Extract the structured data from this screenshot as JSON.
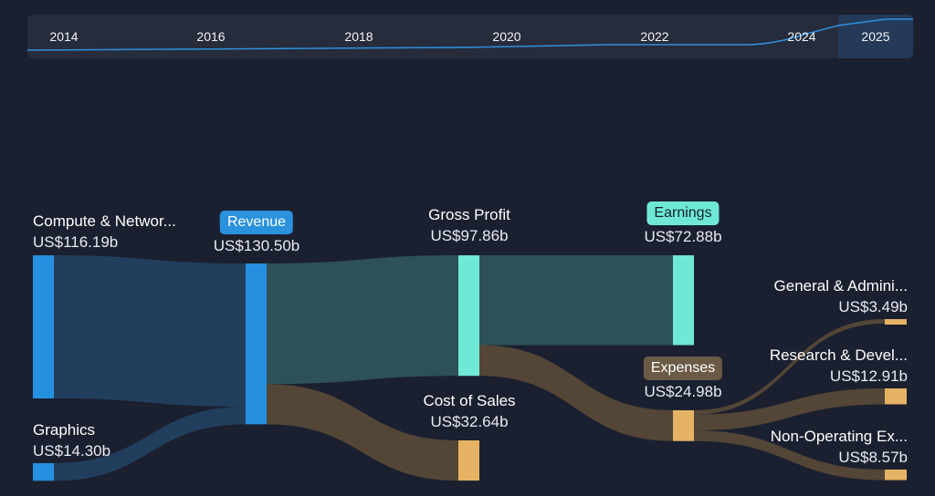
{
  "timeline": {
    "years": [
      "2014",
      "2016",
      "2018",
      "2020",
      "2022",
      "2024",
      "2025"
    ],
    "selected": "2025",
    "line_color": "#2e8fe0"
  },
  "colors": {
    "blue": "#2690e0",
    "teal": "#6fe9d6",
    "tan": "#e6b264",
    "blue_flow": "#223e5d",
    "teal_flow": "#2e5158",
    "brown_flow": "#534636"
  },
  "chart_data": {
    "type": "sankey",
    "nodes": [
      {
        "id": "compute",
        "name": "Compute & Networ...",
        "value": "US$116.19b",
        "amount": 116.19
      },
      {
        "id": "graphics",
        "name": "Graphics",
        "value": "US$14.30b",
        "amount": 14.3
      },
      {
        "id": "revenue",
        "name": "Revenue",
        "value": "US$130.50b",
        "amount": 130.5
      },
      {
        "id": "gross",
        "name": "Gross Profit",
        "value": "US$97.86b",
        "amount": 97.86
      },
      {
        "id": "cos",
        "name": "Cost of Sales",
        "value": "US$32.64b",
        "amount": 32.64
      },
      {
        "id": "earnings",
        "name": "Earnings",
        "value": "US$72.88b",
        "amount": 72.88
      },
      {
        "id": "expenses",
        "name": "Expenses",
        "value": "US$24.98b",
        "amount": 24.98
      },
      {
        "id": "ga",
        "name": "General & Admini...",
        "value": "US$3.49b",
        "amount": 3.49
      },
      {
        "id": "rd",
        "name": "Research & Devel...",
        "value": "US$12.91b",
        "amount": 12.91
      },
      {
        "id": "nonop",
        "name": "Non-Operating Ex...",
        "value": "US$8.57b",
        "amount": 8.57
      }
    ],
    "links": [
      {
        "source": "compute",
        "target": "revenue",
        "value": 116.19
      },
      {
        "source": "graphics",
        "target": "revenue",
        "value": 14.3
      },
      {
        "source": "revenue",
        "target": "gross",
        "value": 97.86
      },
      {
        "source": "revenue",
        "target": "cos",
        "value": 32.64
      },
      {
        "source": "gross",
        "target": "earnings",
        "value": 72.88
      },
      {
        "source": "gross",
        "target": "expenses",
        "value": 24.98
      },
      {
        "source": "expenses",
        "target": "ga",
        "value": 3.49
      },
      {
        "source": "expenses",
        "target": "rd",
        "value": 12.91
      },
      {
        "source": "expenses",
        "target": "nonop",
        "value": 8.57
      }
    ]
  }
}
